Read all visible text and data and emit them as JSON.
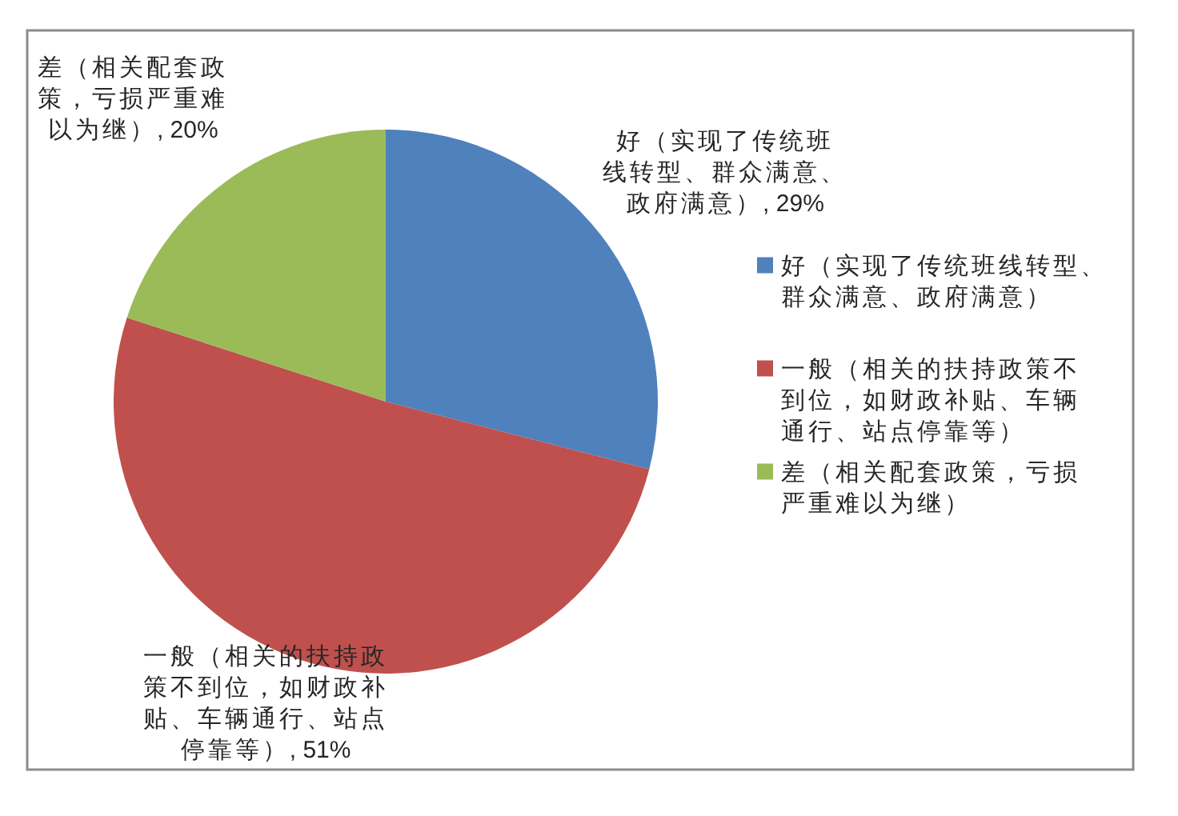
{
  "chart_data": {
    "type": "pie",
    "categories": [
      "好（实现了传统班线转型、群众满意、政府满意）",
      "一般（相关的扶持政策不到位，如财政补贴、车辆通行、站点停靠等）",
      "差（相关配套政策，亏损严重难以为继）"
    ],
    "values": [
      29,
      51,
      20
    ],
    "colors": [
      "#4f81bd",
      "#c0504d",
      "#9bbb59"
    ],
    "value_labels": [
      ", 29%",
      ", 51%",
      ", 20%"
    ],
    "legend": "right"
  }
}
